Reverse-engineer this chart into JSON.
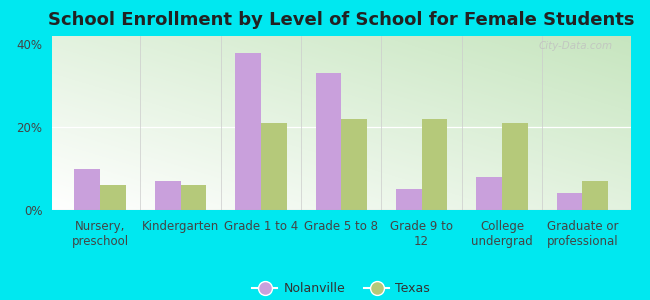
{
  "title": "School Enrollment by Level of School for Female Students",
  "categories": [
    "Nursery,\npreschool",
    "Kindergarten",
    "Grade 1 to 4",
    "Grade 5 to 8",
    "Grade 9 to\n12",
    "College\nundergrad",
    "Graduate or\nprofessional"
  ],
  "nolanville": [
    10,
    7,
    38,
    33,
    5,
    8,
    4
  ],
  "texas": [
    6,
    6,
    21,
    22,
    22,
    21,
    7
  ],
  "nolanville_color": "#c9a0dc",
  "texas_color": "#b5c97a",
  "bg_outer": "#00e8f0",
  "ylim": [
    0,
    42
  ],
  "yticks": [
    0,
    20,
    40
  ],
  "ytick_labels": [
    "0%",
    "20%",
    "40%"
  ],
  "legend_labels": [
    "Nolanville",
    "Texas"
  ],
  "watermark": "City-Data.com",
  "title_fontsize": 13,
  "tick_fontsize": 8.5,
  "bar_width": 0.32
}
